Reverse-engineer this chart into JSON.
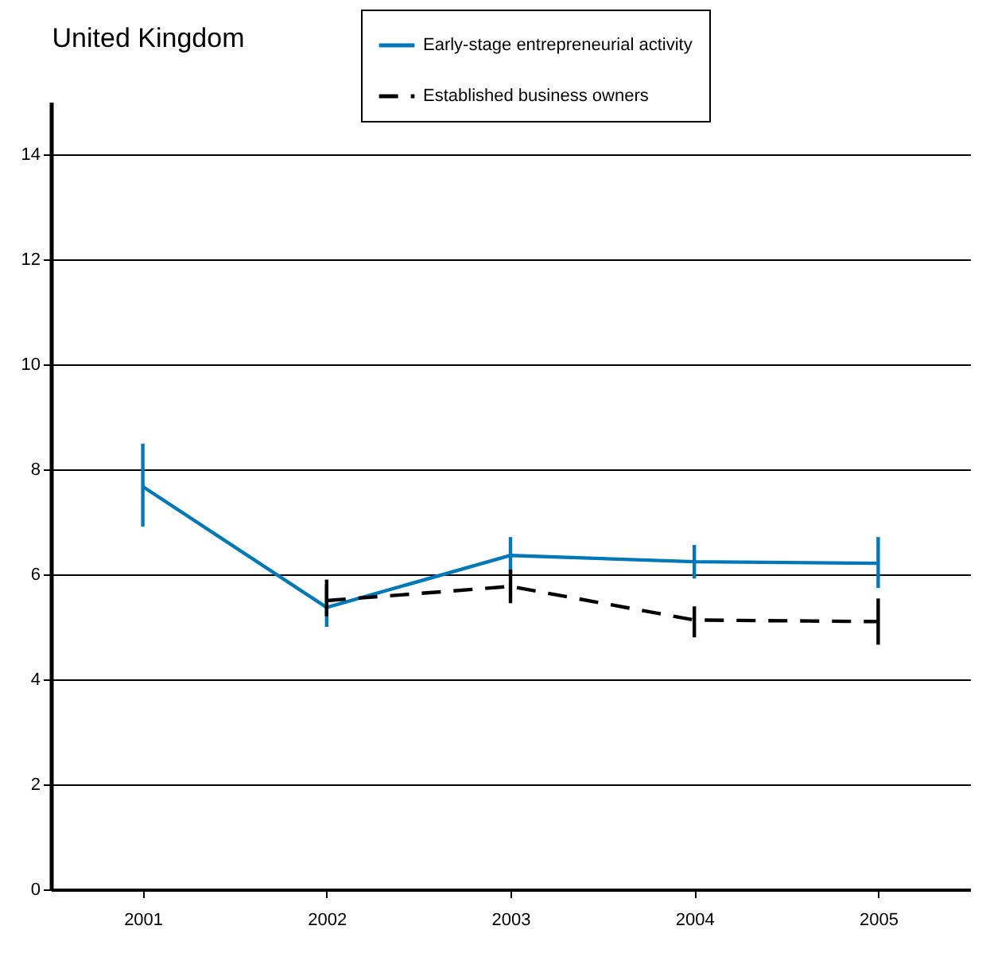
{
  "chart_data": {
    "type": "line",
    "title": "United Kingdom",
    "categories": [
      "2001",
      "2002",
      "2003",
      "2004",
      "2005"
    ],
    "series": [
      {
        "name": "Early-stage entrepreneurial activity",
        "color": "#0077b6",
        "line_style": "solid",
        "values": [
          7.67,
          5.37,
          6.36,
          6.24,
          6.21
        ],
        "errors": [
          [
            6.91,
            8.49
          ],
          [
            5.0,
            5.8
          ],
          [
            6.0,
            6.71
          ],
          [
            5.92,
            6.56
          ],
          [
            5.74,
            6.71
          ]
        ]
      },
      {
        "name": "Established business owners",
        "color": "#000000",
        "line_style": "dashed",
        "values": [
          null,
          5.5,
          5.77,
          5.13,
          5.1
        ],
        "errors": [
          null,
          [
            5.2,
            5.9
          ],
          [
            5.45,
            6.09
          ],
          [
            4.8,
            5.39
          ],
          [
            4.66,
            5.54
          ]
        ]
      }
    ],
    "ylim": [
      0,
      15
    ],
    "yticks": [
      0,
      2,
      4,
      6,
      8,
      10,
      12,
      14
    ],
    "grid": "y",
    "legend": "top right"
  }
}
